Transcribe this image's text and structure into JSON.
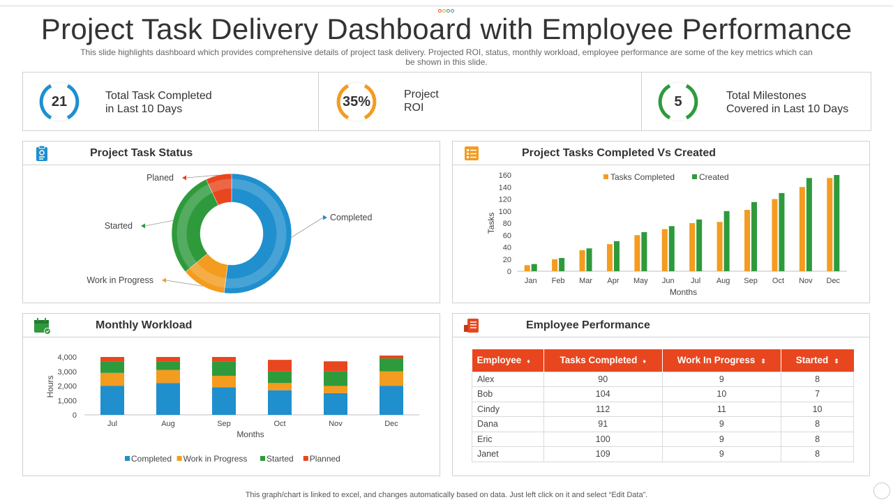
{
  "header": {
    "title": "Project Task Delivery Dashboard with Employee Performance",
    "subtitle": "This slide highlights dashboard which provides comprehensive details of project task delivery. Projected ROI, status, monthly workload, employee performance are some of the key metrics which can be shown in this slide."
  },
  "kpis": [
    {
      "value": "21",
      "label": "Total Task Completed\nin Last 10 Days",
      "color": "#1f8fce"
    },
    {
      "value": "35%",
      "label": "Project\nROI",
      "color": "#f39c1f"
    },
    {
      "value": "5",
      "label": "Total Milestones\nCovered in Last 10 Days",
      "color": "#2e9a3c"
    }
  ],
  "panels": {
    "task_status": {
      "title": "Project Task Status",
      "icon": "clipboard-icon"
    },
    "completed_vs_created": {
      "title": "Project Tasks Completed Vs Created",
      "icon": "checklist-icon"
    },
    "monthly_workload": {
      "title": "Monthly Workload",
      "icon": "calendar-check-icon"
    },
    "employee_performance": {
      "title": "Employee Performance",
      "icon": "performance-doc-icon"
    }
  },
  "colors": {
    "completed": "#1f8fce",
    "work_in_progress": "#f39c1f",
    "started": "#2e9a3c",
    "planned": "#e8461e",
    "table_header": "#e8461e"
  },
  "chart_data": [
    {
      "type": "pie",
      "title": "Project Task Status",
      "categories": [
        "Completed",
        "Work in Progress",
        "Started",
        "Planed"
      ],
      "values": [
        52,
        12,
        29,
        7
      ]
    },
    {
      "type": "bar",
      "title": "Project Tasks Completed Vs Created",
      "categories": [
        "Jan",
        "Feb",
        "Mar",
        "Apr",
        "May",
        "Jun",
        "Jul",
        "Aug",
        "Sep",
        "Oct",
        "Nov",
        "Dec"
      ],
      "series": [
        {
          "name": "Tasks Completed",
          "values": [
            10,
            20,
            35,
            45,
            60,
            70,
            80,
            82,
            102,
            120,
            140,
            155
          ]
        },
        {
          "name": "Created",
          "values": [
            12,
            22,
            38,
            50,
            65,
            75,
            86,
            100,
            115,
            130,
            155,
            160
          ]
        }
      ],
      "xlabel": "Months",
      "ylabel": "Tasks",
      "ylim": [
        0,
        160
      ],
      "yticks": [
        0,
        20,
        40,
        60,
        80,
        100,
        120,
        140,
        160
      ],
      "legend": "top"
    },
    {
      "type": "bar",
      "stacked": true,
      "title": "Monthly Workload",
      "categories": [
        "Jul",
        "Aug",
        "Sep",
        "Oct",
        "Nov",
        "Dec"
      ],
      "series": [
        {
          "name": "Completed",
          "values": [
            2000,
            2200,
            1900,
            1700,
            1500,
            2000
          ]
        },
        {
          "name": "Work in Progress",
          "values": [
            900,
            900,
            800,
            500,
            500,
            1000
          ]
        },
        {
          "name": "Started",
          "values": [
            800,
            600,
            1000,
            800,
            1000,
            900
          ]
        },
        {
          "name": "Planned",
          "values": [
            300,
            300,
            300,
            800,
            700,
            200
          ]
        }
      ],
      "xlabel": "Months",
      "ylabel": "Hours",
      "ylim": [
        0,
        4000
      ],
      "yticks": [
        "0",
        "1,000",
        "2,000",
        "3,000",
        "4,000"
      ],
      "legend": "bottom"
    }
  ],
  "employee_table": {
    "headers": [
      "Employee",
      "Tasks Completed",
      "Work In Progress",
      "Started"
    ],
    "rows": [
      [
        "Alex",
        "90",
        "9",
        "8"
      ],
      [
        "Bob",
        "104",
        "10",
        "7"
      ],
      [
        "Cindy",
        "112",
        "11",
        "10"
      ],
      [
        "Dana",
        "91",
        "9",
        "8"
      ],
      [
        "Eric",
        "100",
        "9",
        "8"
      ],
      [
        "Janet",
        "109",
        "9",
        "8"
      ]
    ]
  },
  "footer": "This graph/chart is linked to excel, and changes automatically based on data. Just left click on it and select “Edit Data”."
}
